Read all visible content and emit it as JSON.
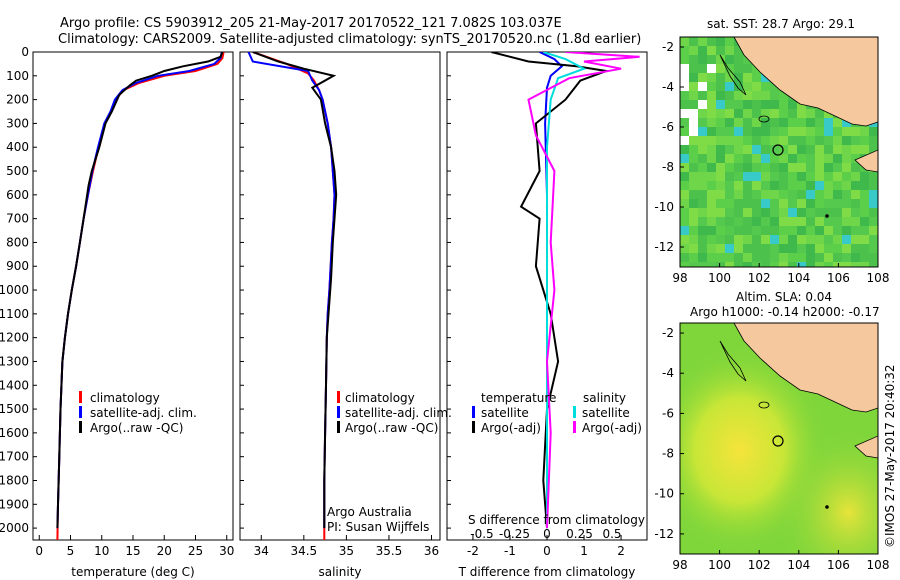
{
  "header": {
    "line1": "Argo profile: CS 5903912_205 21-May-2017 20170522_121 7.082S 103.037E",
    "line2": "Climatology: CARS2009. Satellite-adjusted climatology: synTS_20170520.nc (1.8d earlier)"
  },
  "colors": {
    "climatology": "#ff0000",
    "satellite": "#0000ff",
    "argo": "#000000",
    "sal_satellite": "#00dddd",
    "sal_argo": "#ff00ff",
    "land": "#f5c89e"
  },
  "chart_data": [
    {
      "type": "line",
      "panel": "temperature",
      "xlabel": "temperature (deg C)",
      "ylabel": "",
      "xlim": [
        -1,
        31
      ],
      "ylim": [
        0,
        2050
      ],
      "xticks": [
        0,
        5,
        10,
        15,
        20,
        25,
        30
      ],
      "yticks": [
        0,
        100,
        200,
        300,
        400,
        500,
        600,
        700,
        800,
        900,
        1000,
        1100,
        1200,
        1300,
        1400,
        1500,
        1600,
        1700,
        1800,
        1900,
        2000
      ],
      "legend": [
        "climatology",
        "satellite-adj. clim.",
        "Argo(..raw -QC)"
      ],
      "series": [
        {
          "name": "climatology",
          "color": "#ff0000",
          "x": [
            29.5,
            29.3,
            28.5,
            25,
            20,
            16,
            13.5,
            12.2,
            11.5,
            10.5,
            9.5,
            8.6,
            7.8,
            7.1,
            6.5,
            5.9,
            5.2,
            4.6,
            4.1,
            3.7,
            3.4,
            3.2,
            3.0,
            2.9
          ],
          "y": [
            0,
            25,
            50,
            80,
            100,
            130,
            160,
            200,
            250,
            300,
            400,
            500,
            600,
            700,
            800,
            900,
            1000,
            1100,
            1200,
            1300,
            1500,
            1700,
            1900,
            2050
          ]
        },
        {
          "name": "satellite-adj. clim.",
          "color": "#0000ff",
          "x": [
            29.2,
            29.0,
            28,
            24,
            19,
            15.5,
            13.3,
            12.1,
            11.4,
            10.4,
            9.4,
            8.5,
            7.8,
            7.1,
            6.5,
            5.9,
            5.2,
            4.6,
            4.1,
            3.7,
            3.4,
            3.2,
            3.0,
            2.9
          ],
          "y": [
            0,
            25,
            50,
            80,
            100,
            130,
            160,
            200,
            250,
            300,
            400,
            500,
            600,
            700,
            800,
            900,
            1000,
            1100,
            1200,
            1300,
            1500,
            1700,
            1900,
            2000
          ]
        },
        {
          "name": "Argo(..raw -QC)",
          "color": "#000000",
          "x": [
            29.3,
            29.0,
            27,
            23,
            20,
            18,
            15.5,
            14.5,
            12.8,
            11.6,
            10.6,
            9.6,
            8.4,
            7.9,
            7.1,
            6.5,
            5.9,
            5.2,
            4.6,
            4.1,
            3.7,
            3.4,
            3.2,
            3.0,
            2.9
          ],
          "y": [
            0,
            20,
            40,
            60,
            80,
            100,
            120,
            140,
            180,
            250,
            300,
            400,
            500,
            560,
            700,
            800,
            900,
            1000,
            1100,
            1200,
            1300,
            1500,
            1700,
            1900,
            2000
          ]
        }
      ]
    },
    {
      "type": "line",
      "panel": "salinity",
      "xlabel": "salinity",
      "xlim": [
        33.75,
        36.1
      ],
      "ylim": [
        0,
        2050
      ],
      "xticks": [
        34,
        34.5,
        35,
        35.5,
        36
      ],
      "legend": [
        "climatology",
        "satellite-adj. clim.",
        "Argo(..raw -QC)"
      ],
      "annotation": [
        "Argo Australia",
        "PI: Susan Wijffels"
      ],
      "series": [
        {
          "name": "climatology",
          "color": "#ff0000",
          "x": [
            33.9,
            34.3,
            34.55,
            34.62,
            34.68,
            34.72,
            34.78,
            34.82,
            34.84,
            34.86,
            34.85,
            34.83,
            34.8,
            34.78,
            34.77,
            34.76,
            34.75,
            34.74,
            34.74
          ],
          "y": [
            0,
            50,
            90,
            120,
            160,
            200,
            300,
            400,
            500,
            600,
            700,
            800,
            1000,
            1100,
            1200,
            1400,
            1600,
            1800,
            2050
          ]
        },
        {
          "name": "satellite-adj. clim.",
          "color": "#0000ff",
          "x": [
            33.85,
            33.9,
            34.55,
            34.6,
            34.68,
            34.72,
            34.78,
            34.82,
            34.84,
            34.86,
            34.85,
            34.83,
            34.8,
            34.78,
            34.77,
            34.76,
            34.75,
            34.74,
            34.74
          ],
          "y": [
            0,
            40,
            80,
            120,
            160,
            200,
            300,
            400,
            500,
            600,
            700,
            800,
            1000,
            1100,
            1200,
            1400,
            1600,
            1800,
            2000
          ]
        },
        {
          "name": "Argo(..raw -QC)",
          "color": "#000000",
          "x": [
            33.9,
            34.2,
            34.5,
            34.85,
            34.6,
            34.7,
            34.75,
            34.82,
            34.86,
            34.88,
            34.86,
            34.84,
            34.82,
            34.79,
            34.77,
            34.76,
            34.75,
            34.74,
            34.74
          ],
          "y": [
            0,
            40,
            70,
            100,
            150,
            200,
            300,
            400,
            500,
            600,
            700,
            800,
            950,
            1100,
            1200,
            1400,
            1600,
            1800,
            2000
          ]
        }
      ]
    },
    {
      "type": "line",
      "panel": "difference",
      "xlabel": "T difference from climatology",
      "xlabel_top": "S difference from climatology",
      "xlim": [
        -2.7,
        2.7
      ],
      "ylim": [
        0,
        2050
      ],
      "xticks": [
        -2,
        -1,
        0,
        1,
        2
      ],
      "sticks": [
        "-0.5",
        "-0.25",
        "0",
        "0.25",
        "0.5"
      ],
      "sticks_values": [
        -0.5,
        -0.25,
        0,
        0.25,
        0.5
      ],
      "legend_temperature_title": "temperature",
      "legend_salinity_title": "salinity",
      "legend_temperature": [
        "satellite",
        "Argo(-adj)"
      ],
      "legend_salinity": [
        "satellite",
        "Argo(-adj)"
      ],
      "series": [
        {
          "name": "T satellite",
          "color": "#0000ff",
          "x": [
            -0.2,
            0.2,
            0.4,
            0.1,
            0.0,
            -0.05,
            0.0,
            0.0,
            0.0,
            0.0
          ],
          "y": [
            0,
            30,
            60,
            100,
            150,
            300,
            600,
            1000,
            1500,
            2000
          ]
        },
        {
          "name": "T Argo(-adj)",
          "color": "#000000",
          "x": [
            -1.5,
            -0.5,
            0.8,
            1.6,
            0.9,
            0.5,
            -0.3,
            -0.2,
            -0.7,
            -0.2,
            -0.3,
            0.1,
            0.3,
            0.0,
            -0.1,
            0.0
          ],
          "y": [
            0,
            40,
            60,
            80,
            120,
            200,
            300,
            500,
            650,
            700,
            900,
            1100,
            1300,
            1500,
            1800,
            2000
          ]
        },
        {
          "name": "S satellite",
          "color": "#00dddd",
          "x": [
            -0.1,
            0.5,
            1.0,
            0.3,
            0.1,
            0.0,
            0.0,
            0.0,
            0.0
          ],
          "y": [
            0,
            30,
            70,
            110,
            200,
            400,
            800,
            1400,
            2000
          ]
        },
        {
          "name": "S Argo(-adj)",
          "color": "#ff00ff",
          "x": [
            0.5,
            2.5,
            1.0,
            2.0,
            0.6,
            -0.5,
            -0.3,
            0.2,
            0.1,
            0.2,
            0.0,
            0.1,
            0.0
          ],
          "y": [
            0,
            20,
            40,
            70,
            110,
            200,
            350,
            500,
            800,
            1000,
            1300,
            1600,
            2000
          ]
        }
      ]
    },
    {
      "type": "heatmap",
      "panel": "sst-map",
      "title": "sat. SST: 28.7 Argo: 29.1",
      "xticks": [
        98,
        100,
        102,
        104,
        106,
        108
      ],
      "yticks": [
        -2,
        -4,
        -6,
        -8,
        -10,
        -12
      ],
      "xlim": [
        98,
        108
      ],
      "ylim": [
        -13,
        -1.5
      ],
      "profile_location": [
        103.037,
        -7.082
      ]
    },
    {
      "type": "heatmap",
      "panel": "sla-map",
      "title_line1": "Altim. SLA: 0.04",
      "title_line2": "Argo h1000: -0.14 h2000: -0.17",
      "xticks": [
        98,
        100,
        102,
        104,
        106,
        108
      ],
      "yticks": [
        -2,
        -4,
        -6,
        -8,
        -10,
        -12
      ],
      "xlim": [
        98,
        108
      ],
      "ylim": [
        -13,
        -1.5
      ],
      "profile_location": [
        103.037,
        -7.082
      ]
    }
  ],
  "footer": {
    "credit": "©IMOS 27-May-2017 20:40:32"
  }
}
